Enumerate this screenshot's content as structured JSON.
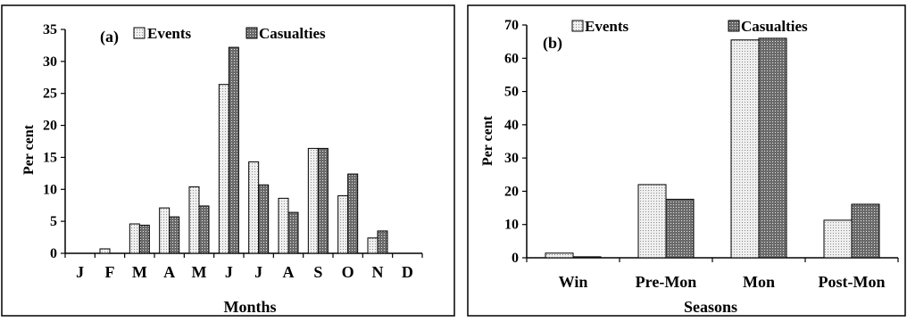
{
  "chart_data": [
    {
      "type": "bar",
      "panel_label": "(a)",
      "title": "",
      "xlabel": "Months",
      "ylabel": "Per cent",
      "ylim": [
        0,
        35
      ],
      "yticks": [
        0,
        5,
        10,
        15,
        20,
        25,
        30,
        35
      ],
      "grid": false,
      "legend_position": "top",
      "categories": [
        "J",
        "F",
        "M",
        "A",
        "M",
        "J",
        "J",
        "A",
        "S",
        "O",
        "N",
        "D"
      ],
      "series": [
        {
          "name": "Events",
          "pattern": "light-dotted",
          "values": [
            0,
            0.7,
            4.6,
            7.1,
            10.4,
            26.4,
            14.3,
            8.6,
            16.4,
            9.0,
            2.4,
            0
          ]
        },
        {
          "name": "Casualties",
          "pattern": "dark-dotted",
          "values": [
            0,
            0,
            4.4,
            5.7,
            7.4,
            32.2,
            10.7,
            6.4,
            16.4,
            12.4,
            3.5,
            0
          ]
        }
      ]
    },
    {
      "type": "bar",
      "panel_label": "(b)",
      "title": "",
      "xlabel": "Seasons",
      "ylabel": "Per cent",
      "ylim": [
        0,
        70
      ],
      "yticks": [
        0,
        10,
        20,
        30,
        40,
        50,
        60,
        70
      ],
      "grid": false,
      "legend_position": "top",
      "categories": [
        "Win",
        "Pre-Mon",
        "Mon",
        "Post-Mon"
      ],
      "series": [
        {
          "name": "Events",
          "pattern": "light-dotted",
          "values": [
            1.4,
            22.0,
            65.5,
            11.3
          ]
        },
        {
          "name": "Casualties",
          "pattern": "dark-dotted",
          "values": [
            0.3,
            17.6,
            66.0,
            16.1
          ]
        }
      ]
    }
  ],
  "colors": {
    "light_fill": "#e2e2e2",
    "dark_fill": "#7a7a7a",
    "axis": "#000000"
  }
}
